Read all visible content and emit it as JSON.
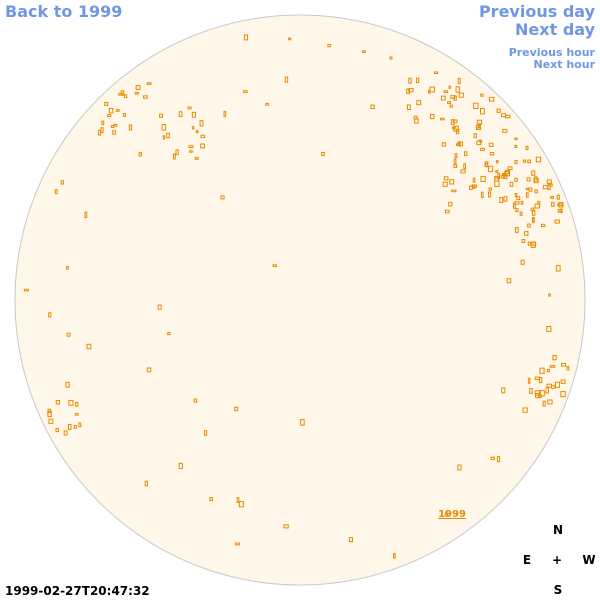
{
  "nav": {
    "back": "Back to 1999",
    "previous_day": "Previous day",
    "next_day": "Next day",
    "previous_hour": "Previous hour",
    "next_hour": "Next hour"
  },
  "image": {
    "label": "1999"
  },
  "compass": {
    "north": "N",
    "east": "E",
    "center": "+",
    "west": "W",
    "south": "S"
  },
  "timestamp": "1999-02-27T20:47:32"
}
